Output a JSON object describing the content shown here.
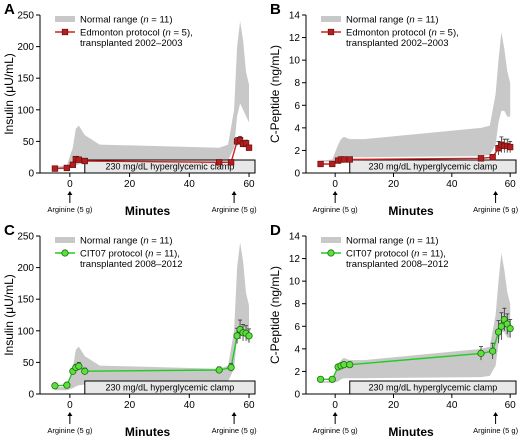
{
  "chart_data": [
    {
      "panel": "A",
      "type": "line",
      "ylabel": "Insulin (μU/mL)",
      "xlabel": "Minutes",
      "xlim": [
        -10,
        62
      ],
      "ylim": [
        0,
        250
      ],
      "yticks": [
        0,
        50,
        100,
        150,
        200,
        250
      ],
      "xticks": [
        0,
        20,
        40,
        60
      ],
      "normal_range": {
        "name": "Normal range (n = 11)",
        "x": [
          -5,
          -1,
          1,
          2,
          3,
          5,
          10,
          50,
          53,
          55,
          56,
          57,
          58,
          59,
          60
        ],
        "lower": [
          6,
          6,
          9,
          12,
          14,
          15,
          16,
          20,
          20,
          40,
          90,
          110,
          100,
          90,
          80
        ],
        "upper": [
          10,
          12,
          40,
          70,
          75,
          60,
          45,
          40,
          45,
          100,
          200,
          240,
          210,
          160,
          140
        ]
      },
      "series": [
        {
          "name": "Edmonton protocol (n = 5), transplanted 2002–2003",
          "color": "#cc2222",
          "marker": "square",
          "x": [
            -5,
            -1,
            1,
            2,
            3,
            5,
            50,
            54,
            56,
            57,
            58,
            59,
            60
          ],
          "y": [
            7,
            8,
            13,
            22,
            21,
            19,
            17,
            17,
            50,
            52,
            46,
            47,
            40
          ],
          "err": [
            1,
            1,
            2,
            3,
            3,
            2,
            2,
            2,
            6,
            6,
            5,
            5,
            4
          ]
        }
      ],
      "clamp_label": "230 mg/dL hyperglycemic clamp",
      "annotations": [
        {
          "text": "Arginine (5 g)",
          "x": 0
        },
        {
          "text": "Arginine (5 g)",
          "x": 55
        }
      ]
    },
    {
      "panel": "B",
      "type": "line",
      "ylabel": "C-Peptide (ng/mL)",
      "xlabel": "Minutes",
      "xlim": [
        -10,
        62
      ],
      "ylim": [
        0,
        14
      ],
      "yticks": [
        0,
        2,
        4,
        6,
        8,
        10,
        12,
        14
      ],
      "xticks": [
        0,
        20,
        40,
        60
      ],
      "normal_range": {
        "name": "Normal range (n = 11)",
        "x": [
          -5,
          -1,
          1,
          2,
          3,
          5,
          10,
          50,
          53,
          55,
          56,
          57,
          58,
          59,
          60
        ],
        "lower": [
          1.0,
          1.0,
          1.1,
          1.3,
          1.4,
          1.4,
          1.4,
          1.5,
          1.6,
          2.5,
          4.5,
          5.5,
          5.5,
          5.0,
          5.0
        ],
        "upper": [
          1.1,
          1.2,
          2.5,
          3.0,
          3.2,
          3.0,
          3.0,
          4.0,
          4.2,
          7.0,
          10.0,
          12.5,
          11.0,
          9.0,
          8.0
        ]
      },
      "series": [
        {
          "name": "Edmonton protocol (n = 5), transplanted 2002–2003",
          "color": "#cc2222",
          "marker": "square",
          "x": [
            -5,
            -1,
            1,
            2,
            3,
            5,
            50,
            54,
            56,
            57,
            58,
            59,
            60
          ],
          "y": [
            0.8,
            0.8,
            1.1,
            1.2,
            1.2,
            1.2,
            1.3,
            1.4,
            2.2,
            2.5,
            2.4,
            2.4,
            2.3
          ],
          "err": [
            0.1,
            0.1,
            0.1,
            0.1,
            0.1,
            0.1,
            0.2,
            0.2,
            0.6,
            0.7,
            0.6,
            0.6,
            0.5
          ]
        }
      ],
      "clamp_label": "230 mg/dL hyperglycemic clamp",
      "annotations": [
        {
          "text": "Arginine (5 g)",
          "x": 0
        },
        {
          "text": "Arginine (5 g)",
          "x": 55
        }
      ]
    },
    {
      "panel": "C",
      "type": "line",
      "ylabel": "Insulin (μU/mL)",
      "xlabel": "Minutes",
      "xlim": [
        -10,
        62
      ],
      "ylim": [
        0,
        250
      ],
      "yticks": [
        0,
        50,
        100,
        150,
        200,
        250
      ],
      "xticks": [
        0,
        20,
        40,
        60
      ],
      "normal_range": {
        "name": "Normal range (n = 11)",
        "x": [
          -5,
          -1,
          1,
          2,
          3,
          5,
          10,
          50,
          53,
          55,
          56,
          57,
          58,
          59,
          60
        ],
        "lower": [
          6,
          6,
          9,
          12,
          14,
          15,
          16,
          20,
          20,
          40,
          90,
          110,
          100,
          90,
          80
        ],
        "upper": [
          10,
          12,
          40,
          70,
          75,
          60,
          45,
          40,
          45,
          100,
          200,
          240,
          210,
          160,
          140
        ]
      },
      "series": [
        {
          "name": "CIT07 protocol (n = 11), transplanted 2008–2012",
          "color": "#22cc22",
          "marker": "circle",
          "x": [
            -5,
            -1,
            1,
            2,
            3,
            5,
            50,
            54,
            56,
            57,
            58,
            59,
            60
          ],
          "y": [
            13,
            14,
            36,
            42,
            44,
            36,
            38,
            42,
            92,
            102,
            97,
            96,
            92
          ],
          "err": [
            2,
            2,
            4,
            5,
            6,
            5,
            5,
            6,
            12,
            15,
            13,
            12,
            11
          ]
        }
      ],
      "clamp_label": "230 mg/dL hyperglycemic clamp",
      "annotations": [
        {
          "text": "Arginine (5 g)",
          "x": 0
        },
        {
          "text": "Arginine (5 g)",
          "x": 55
        }
      ]
    },
    {
      "panel": "D",
      "type": "line",
      "ylabel": "C-Peptide (ng/mL)",
      "xlabel": "Minutes",
      "xlim": [
        -10,
        62
      ],
      "ylim": [
        0,
        14
      ],
      "yticks": [
        0,
        2,
        4,
        6,
        8,
        10,
        12,
        14
      ],
      "xticks": [
        0,
        20,
        40,
        60
      ],
      "normal_range": {
        "name": "Normal range (n = 11)",
        "x": [
          -5,
          -1,
          1,
          2,
          3,
          5,
          10,
          50,
          53,
          55,
          56,
          57,
          58,
          59,
          60
        ],
        "lower": [
          1.0,
          1.0,
          1.1,
          1.3,
          1.4,
          1.4,
          1.4,
          1.5,
          1.6,
          2.5,
          4.5,
          5.5,
          5.5,
          5.0,
          5.0
        ],
        "upper": [
          1.1,
          1.2,
          2.5,
          3.0,
          3.2,
          3.0,
          3.0,
          4.0,
          4.2,
          7.0,
          10.0,
          12.5,
          11.0,
          9.0,
          8.0
        ]
      },
      "series": [
        {
          "name": "CIT07 protocol (n = 11), transplanted 2008–2012",
          "color": "#22cc22",
          "marker": "circle",
          "x": [
            -5,
            -1,
            1,
            2,
            3,
            5,
            50,
            54,
            56,
            57,
            58,
            59,
            60
          ],
          "y": [
            1.3,
            1.3,
            2.4,
            2.5,
            2.6,
            2.6,
            3.6,
            3.8,
            5.5,
            6.0,
            6.6,
            6.2,
            5.8
          ],
          "err": [
            0.1,
            0.1,
            0.2,
            0.2,
            0.2,
            0.2,
            0.6,
            0.7,
            1.0,
            1.2,
            1.0,
            0.9,
            0.8
          ]
        }
      ],
      "clamp_label": "230 mg/dL hyperglycemic clamp",
      "annotations": [
        {
          "text": "Arginine (5 g)",
          "x": 0
        },
        {
          "text": "Arginine (5 g)",
          "x": 55
        }
      ]
    }
  ]
}
